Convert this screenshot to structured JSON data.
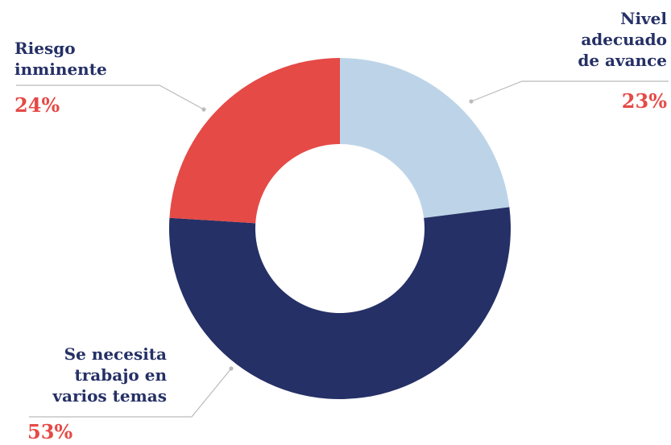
{
  "chart_data": {
    "type": "pie",
    "variant": "donut",
    "slices": [
      {
        "label_lines": [
          "Nivel",
          "adecuado",
          "de avance"
        ],
        "value": 23,
        "value_label": "23%",
        "color": "#bdd4e8"
      },
      {
        "label_lines": [
          "Se necesita",
          "trabajo en",
          "varios temas"
        ],
        "value": 53,
        "value_label": "53%",
        "color": "#253066"
      },
      {
        "label_lines": [
          "Riesgo",
          "inminente"
        ],
        "value": 24,
        "value_label": "24%",
        "color": "#e54a46"
      }
    ],
    "start": "12 o'clock",
    "direction": "clockwise",
    "label_color": "#253066",
    "value_color": "#e54a46",
    "leader_line_color": "#bbbbbb"
  }
}
